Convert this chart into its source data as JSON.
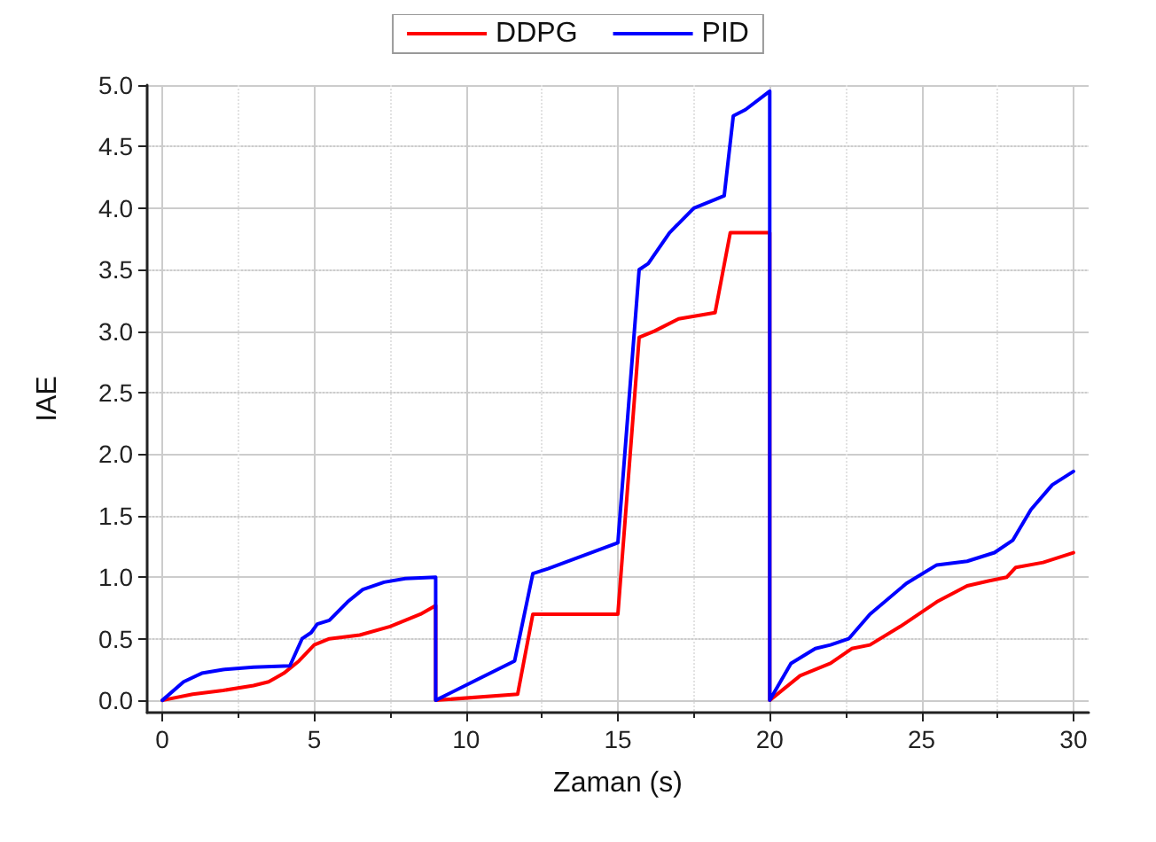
{
  "chart_data": {
    "type": "line",
    "xlabel": "Zaman (s)",
    "ylabel": "IAE",
    "legend": "top",
    "grid": true,
    "marker": "none",
    "line_style": "solid",
    "xlim": [
      -0.5,
      30.5
    ],
    "xticks": [
      0,
      5,
      10,
      15,
      20,
      25,
      30
    ],
    "ylim": [
      -0.1,
      5
    ],
    "yticks": [
      {
        "value": 0,
        "label": "0.0"
      },
      {
        "value": 0.5,
        "label": "0.5"
      },
      {
        "value": 1,
        "label": "1.0"
      },
      {
        "value": 1.5,
        "label": "1.5"
      },
      {
        "value": 2,
        "label": "2.0"
      },
      {
        "value": 2.5,
        "label": "2.5"
      },
      {
        "value": 3,
        "label": "3.0"
      },
      {
        "value": 3.5,
        "label": "3.5"
      },
      {
        "value": 4,
        "label": "4.0"
      },
      {
        "value": 4.5,
        "label": "4.5"
      },
      {
        "value": 5,
        "label": "5.0"
      }
    ],
    "series": [
      {
        "name": "DDPG",
        "color": "#ff0000",
        "x": [
          0,
          1,
          2,
          3,
          3.5,
          4,
          4.5,
          5,
          5.5,
          6.5,
          7.5,
          8.5,
          9,
          9,
          11.7,
          12.2,
          15,
          15.7,
          16.2,
          17,
          18.2,
          18.7,
          20,
          20,
          21,
          22,
          22.7,
          23.3,
          24.3,
          25.5,
          26.5,
          27.2,
          27.8,
          28.1,
          29,
          30
        ],
        "values": [
          0,
          0.05,
          0.08,
          0.12,
          0.15,
          0.22,
          0.32,
          0.45,
          0.5,
          0.53,
          0.6,
          0.7,
          0.77,
          0,
          0.05,
          0.7,
          0.7,
          2.95,
          3.0,
          3.1,
          3.15,
          3.8,
          3.8,
          0,
          0.2,
          0.3,
          0.42,
          0.45,
          0.6,
          0.8,
          0.93,
          0.97,
          1.0,
          1.08,
          1.12,
          1.2
        ]
      },
      {
        "name": "PID",
        "color": "#0000ff",
        "x": [
          0,
          0.7,
          1.3,
          2,
          3,
          4.2,
          4.6,
          4.9,
          5.1,
          5.5,
          6.1,
          6.6,
          7.3,
          8,
          9,
          9,
          11.6,
          12.2,
          12.7,
          15,
          15.7,
          16,
          16.7,
          17.5,
          18.2,
          18.5,
          18.8,
          19.2,
          20,
          20,
          20.7,
          21.5,
          22,
          22.6,
          23.3,
          24.5,
          25.5,
          26.5,
          27.4,
          28,
          28.6,
          29.3,
          30
        ],
        "values": [
          0,
          0.15,
          0.22,
          0.25,
          0.27,
          0.28,
          0.5,
          0.55,
          0.62,
          0.65,
          0.8,
          0.9,
          0.96,
          0.99,
          1.0,
          0,
          0.32,
          1.03,
          1.07,
          1.28,
          3.5,
          3.55,
          3.8,
          4.0,
          4.07,
          4.1,
          4.75,
          4.8,
          4.95,
          0,
          0.3,
          0.42,
          0.45,
          0.5,
          0.7,
          0.95,
          1.1,
          1.13,
          1.2,
          1.3,
          1.55,
          1.75,
          1.86
        ]
      }
    ]
  }
}
